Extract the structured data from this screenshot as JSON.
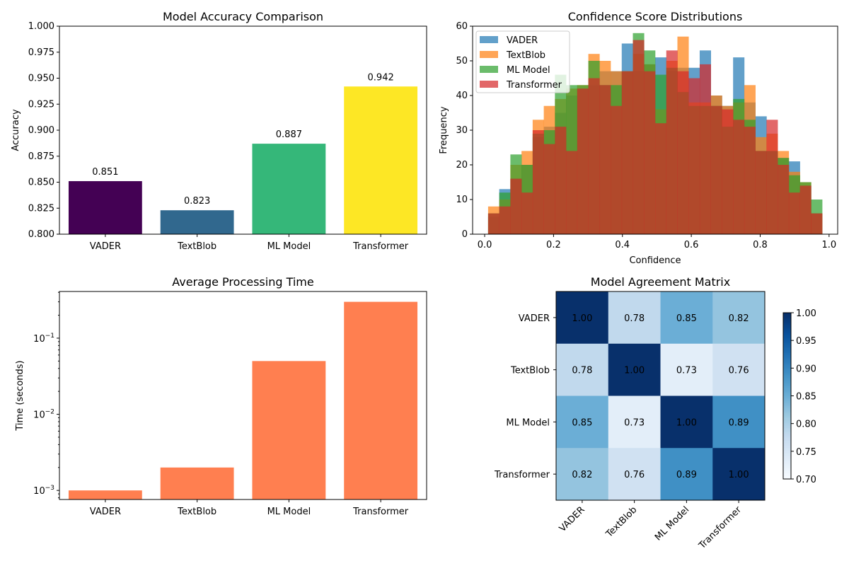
{
  "chart_data": [
    {
      "type": "bar",
      "title": "Model Accuracy Comparison",
      "ylabel": "Accuracy",
      "xlabel": "",
      "categories": [
        "VADER",
        "TextBlob",
        "ML Model",
        "Transformer"
      ],
      "values": [
        0.851,
        0.823,
        0.887,
        0.942
      ],
      "data_labels": [
        "0.851",
        "0.823",
        "0.887",
        "0.942"
      ],
      "colors": [
        "#440154",
        "#31688e",
        "#35b779",
        "#fde725"
      ],
      "ylim": [
        0.8,
        1.0
      ],
      "yticks": [
        "0.800",
        "0.825",
        "0.850",
        "0.875",
        "0.900",
        "0.925",
        "0.950",
        "0.975",
        "1.000"
      ]
    },
    {
      "type": "histogram",
      "title": "Confidence Score Distributions",
      "xlabel": "Confidence",
      "ylabel": "Frequency",
      "xlim": [
        -0.035,
        1.025
      ],
      "ylim": [
        0,
        60
      ],
      "xticks": [
        "0.0",
        "0.2",
        "0.4",
        "0.6",
        "0.8",
        "1.0"
      ],
      "yticks": [
        "0",
        "10",
        "20",
        "30",
        "40",
        "50",
        "60"
      ],
      "bin_range": [
        0.01,
        0.98
      ],
      "legend": "top-left",
      "series": [
        {
          "name": "VADER",
          "color": "#1f77b4",
          "values": [
            5,
            13,
            16,
            20,
            28,
            31,
            35,
            40,
            42,
            43,
            47,
            47,
            55,
            47,
            49,
            51,
            47,
            48,
            48,
            53,
            40,
            37,
            51,
            38,
            34,
            24,
            22,
            21,
            14,
            6
          ]
        },
        {
          "name": "TextBlob",
          "color": "#ff7f0e",
          "values": [
            8,
            10,
            20,
            24,
            33,
            37,
            39,
            42,
            43,
            52,
            50,
            47,
            47,
            52,
            49,
            36,
            50,
            57,
            38,
            38,
            40,
            37,
            38,
            43,
            28,
            29,
            24,
            18,
            15,
            6
          ]
        },
        {
          "name": "ML Model",
          "color": "#2ca02c",
          "values": [
            6,
            12,
            23,
            20,
            29,
            30,
            46,
            43,
            43,
            50,
            43,
            43,
            47,
            58,
            53,
            46,
            48,
            41,
            37,
            37,
            37,
            31,
            39,
            33,
            24,
            24,
            22,
            17,
            15,
            10
          ]
        },
        {
          "name": "Transformer",
          "color": "#d62728",
          "values": [
            6,
            8,
            16,
            12,
            30,
            26,
            31,
            24,
            42,
            45,
            43,
            37,
            47,
            56,
            47,
            32,
            53,
            47,
            45,
            49,
            37,
            36,
            33,
            31,
            24,
            33,
            20,
            12,
            14,
            6
          ]
        }
      ]
    },
    {
      "type": "bar",
      "title": "Average Processing Time",
      "ylabel": "Time (seconds)",
      "xlabel": "",
      "yscale": "log",
      "categories": [
        "VADER",
        "TextBlob",
        "ML Model",
        "Transformer"
      ],
      "values": [
        0.001,
        0.002,
        0.05,
        0.3
      ],
      "color": "#ff7f50",
      "ylim": [
        0.00076,
        0.41
      ],
      "yticks": [
        "10^-3",
        "10^-2",
        "10^-1"
      ]
    },
    {
      "type": "heatmap",
      "title": "Model Agreement Matrix",
      "colormap": "Blues",
      "vmin": 0.7,
      "vmax": 1.0,
      "rows": [
        "VADER",
        "TextBlob",
        "ML Model",
        "Transformer"
      ],
      "cols": [
        "VADER",
        "TextBlob",
        "ML Model",
        "Transformer"
      ],
      "values": [
        [
          1.0,
          0.78,
          0.85,
          0.82
        ],
        [
          0.78,
          1.0,
          0.73,
          0.76
        ],
        [
          0.85,
          0.73,
          1.0,
          0.89
        ],
        [
          0.82,
          0.76,
          0.89,
          1.0
        ]
      ],
      "colorbar_ticks": [
        "0.70",
        "0.75",
        "0.80",
        "0.85",
        "0.90",
        "0.95",
        "1.00"
      ]
    }
  ]
}
